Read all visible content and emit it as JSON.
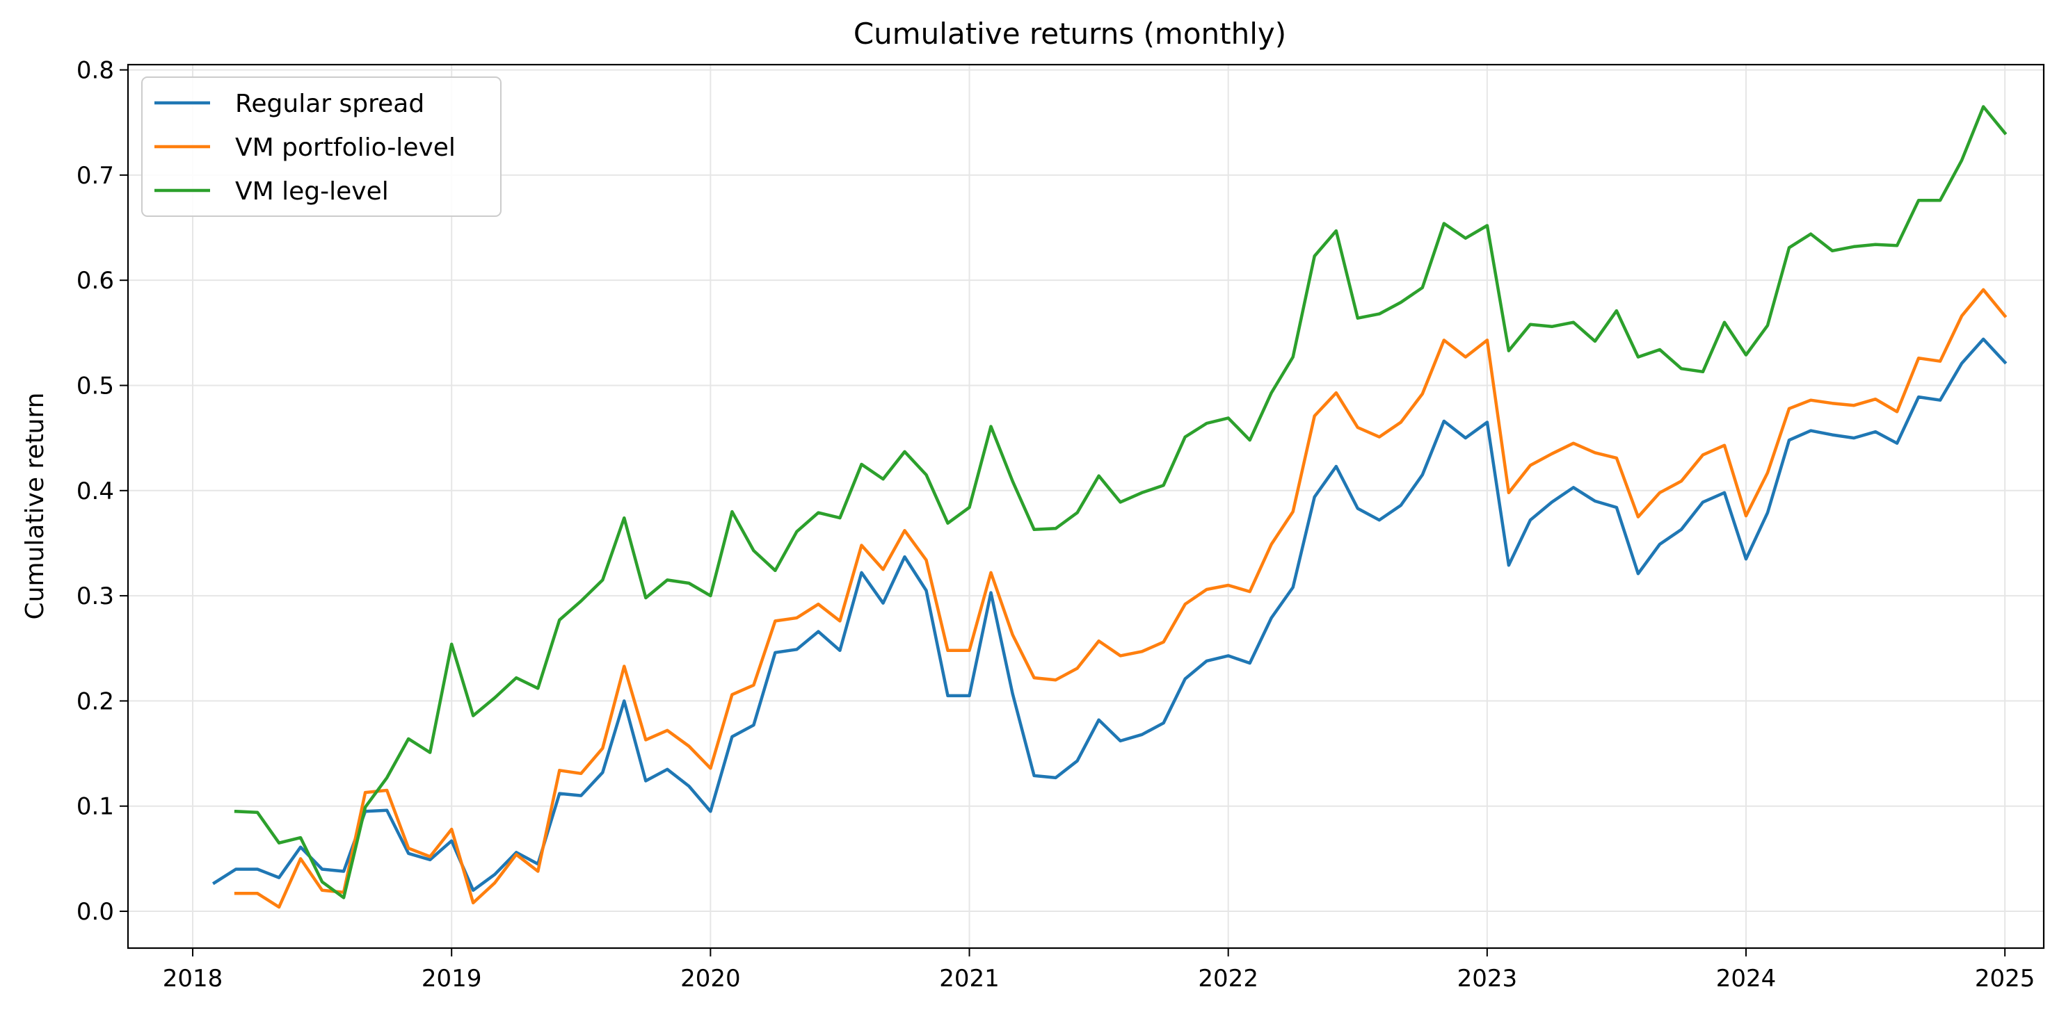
{
  "chart_data": {
    "type": "line",
    "title": "Cumulative returns (monthly)",
    "xlabel": "",
    "ylabel": "Cumulative return",
    "xlim": [
      2017.75,
      2025.15
    ],
    "ylim": [
      -0.035,
      0.805
    ],
    "x_ticks": [
      2018,
      2019,
      2020,
      2021,
      2022,
      2023,
      2024,
      2025
    ],
    "x_tick_labels": [
      "2018",
      "2019",
      "2020",
      "2021",
      "2022",
      "2023",
      "2024",
      "2025"
    ],
    "y_ticks": [
      0.0,
      0.1,
      0.2,
      0.3,
      0.4,
      0.5,
      0.6,
      0.7,
      0.8
    ],
    "y_tick_labels": [
      "0.0",
      "0.1",
      "0.2",
      "0.3",
      "0.4",
      "0.5",
      "0.6",
      "0.7",
      "0.8"
    ],
    "grid": true,
    "legend_position": "top-left",
    "x": [
      "2018-02",
      "2018-03",
      "2018-04",
      "2018-05",
      "2018-06",
      "2018-07",
      "2018-08",
      "2018-09",
      "2018-10",
      "2018-11",
      "2018-12",
      "2019-01",
      "2019-02",
      "2019-03",
      "2019-04",
      "2019-05",
      "2019-06",
      "2019-07",
      "2019-08",
      "2019-09",
      "2019-10",
      "2019-11",
      "2019-12",
      "2020-01",
      "2020-02",
      "2020-03",
      "2020-04",
      "2020-05",
      "2020-06",
      "2020-07",
      "2020-08",
      "2020-09",
      "2020-10",
      "2020-11",
      "2020-12",
      "2021-01",
      "2021-02",
      "2021-03",
      "2021-04",
      "2021-05",
      "2021-06",
      "2021-07",
      "2021-08",
      "2021-09",
      "2021-10",
      "2021-11",
      "2021-12",
      "2022-01",
      "2022-02",
      "2022-03",
      "2022-04",
      "2022-05",
      "2022-06",
      "2022-07",
      "2022-08",
      "2022-09",
      "2022-10",
      "2022-11",
      "2022-12",
      "2023-01",
      "2023-02",
      "2023-03",
      "2023-04",
      "2023-05",
      "2023-06",
      "2023-07",
      "2023-08",
      "2023-09",
      "2023-10",
      "2023-11",
      "2023-12",
      "2024-01",
      "2024-02",
      "2024-03",
      "2024-04",
      "2024-05",
      "2024-06",
      "2024-07",
      "2024-08",
      "2024-09",
      "2024-10",
      "2024-11",
      "2024-12",
      "2025-01"
    ],
    "series": [
      {
        "name": "Regular spread",
        "color": "#1f77b4",
        "values": [
          0.027,
          0.04,
          0.04,
          0.032,
          0.061,
          0.04,
          0.038,
          0.095,
          0.096,
          0.055,
          0.049,
          0.067,
          0.02,
          0.035,
          0.056,
          0.045,
          0.112,
          0.11,
          0.132,
          0.2,
          0.124,
          0.135,
          0.119,
          0.095,
          0.166,
          0.177,
          0.246,
          0.249,
          0.266,
          0.248,
          0.322,
          0.293,
          0.337,
          0.305,
          0.205,
          0.205,
          0.303,
          0.207,
          0.129,
          0.127,
          0.143,
          0.182,
          0.162,
          0.168,
          0.179,
          0.221,
          0.238,
          0.243,
          0.236,
          0.279,
          0.308,
          0.394,
          0.423,
          0.383,
          0.372,
          0.386,
          0.415,
          0.466,
          0.45,
          0.465,
          0.329,
          0.372,
          0.389,
          0.403,
          0.39,
          0.384,
          0.321,
          0.349,
          0.363,
          0.389,
          0.398,
          0.335,
          0.379,
          0.448,
          0.457,
          0.453,
          0.45,
          0.456,
          0.445,
          0.489,
          0.486,
          0.521,
          0.544,
          0.522
        ]
      },
      {
        "name": "VM portfolio-level",
        "color": "#ff7f0e",
        "values": [
          null,
          0.017,
          0.017,
          0.004,
          0.05,
          0.02,
          0.018,
          0.113,
          0.115,
          0.06,
          0.052,
          0.078,
          0.008,
          0.027,
          0.054,
          0.038,
          0.134,
          0.131,
          0.155,
          0.233,
          0.163,
          0.172,
          0.157,
          0.136,
          0.206,
          0.215,
          0.276,
          0.279,
          0.292,
          0.276,
          0.348,
          0.325,
          0.362,
          0.334,
          0.248,
          0.248,
          0.322,
          0.263,
          0.222,
          0.22,
          0.231,
          0.257,
          0.243,
          0.247,
          0.256,
          0.292,
          0.306,
          0.31,
          0.304,
          0.349,
          0.38,
          0.471,
          0.493,
          0.46,
          0.451,
          0.465,
          0.492,
          0.543,
          0.527,
          0.543,
          0.398,
          0.424,
          0.435,
          0.445,
          0.436,
          0.431,
          0.375,
          0.398,
          0.409,
          0.434,
          0.443,
          0.376,
          0.417,
          0.478,
          0.486,
          0.483,
          0.481,
          0.487,
          0.475,
          0.526,
          0.523,
          0.566,
          0.591,
          0.566
        ]
      },
      {
        "name": "VM leg-level",
        "color": "#2ca02c",
        "values": [
          null,
          0.095,
          0.094,
          0.065,
          0.07,
          0.028,
          0.013,
          0.099,
          0.127,
          0.164,
          0.151,
          0.254,
          0.186,
          0.203,
          0.222,
          0.212,
          0.277,
          0.295,
          0.315,
          0.374,
          0.298,
          0.315,
          0.312,
          0.3,
          0.38,
          0.343,
          0.324,
          0.361,
          0.379,
          0.374,
          0.425,
          0.411,
          0.437,
          0.415,
          0.369,
          0.384,
          0.461,
          0.409,
          0.363,
          0.364,
          0.379,
          0.414,
          0.389,
          0.398,
          0.405,
          0.451,
          0.464,
          0.469,
          0.448,
          0.493,
          0.527,
          0.623,
          0.647,
          0.564,
          0.568,
          0.579,
          0.593,
          0.654,
          0.64,
          0.652,
          0.533,
          0.558,
          0.556,
          0.56,
          0.542,
          0.571,
          0.527,
          0.534,
          0.516,
          0.513,
          0.56,
          0.529,
          0.557,
          0.631,
          0.644,
          0.628,
          0.632,
          0.634,
          0.633,
          0.676,
          0.676,
          0.714,
          0.765,
          0.74
        ]
      }
    ]
  }
}
